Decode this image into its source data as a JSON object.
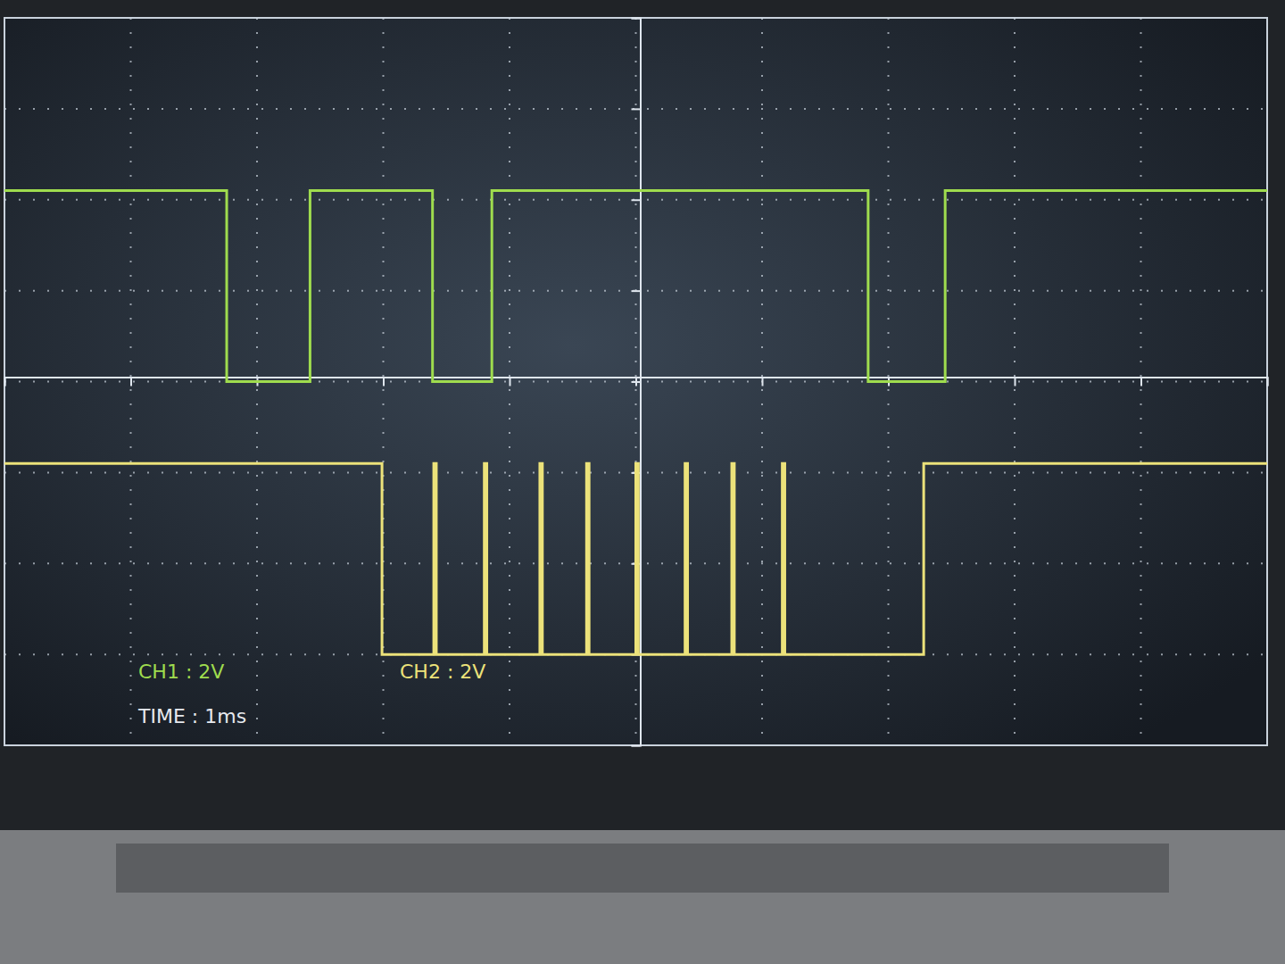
{
  "chart_data": {
    "type": "line",
    "x": [
      0,
      1.76,
      2.42,
      2.99,
      3.39,
      3.4,
      3.42,
      3.8,
      3.82,
      3.86,
      4.24,
      4.26,
      4.61,
      4.63,
      5.0,
      5.02,
      5.39,
      5.41,
      5.76,
      5.78,
      6.16,
      6.18,
      6.84,
      7.28,
      7.45,
      10
    ],
    "series": [
      {
        "name": "CH1 : 2V",
        "color": "#9fdc4e",
        "line_style": "step",
        "values": [
          2.1,
          0,
          2.1,
          2.1,
          0,
          0,
          0,
          0,
          0,
          2.1,
          2.1,
          2.1,
          2.1,
          2.1,
          2.1,
          2.1,
          2.1,
          2.1,
          2.1,
          2.1,
          2.1,
          2.1,
          0,
          0,
          2.1,
          2.1
        ]
      },
      {
        "name": "CH2 : 2V",
        "color": "#ece27a",
        "line_style": "step",
        "values": [
          -0.9,
          -0.9,
          -0.9,
          -3,
          -3,
          -0.9,
          -3,
          -0.9,
          -3,
          -3,
          -0.9,
          -3,
          -0.9,
          -3,
          -0.9,
          -3,
          -0.9,
          -3,
          -0.9,
          -3,
          -0.9,
          -3,
          -3,
          -0.9,
          -0.9,
          -0.9
        ]
      }
    ],
    "annotations": [
      "TIME : 1ms"
    ],
    "xlim": [
      0,
      10
    ],
    "xticks": [
      0,
      1,
      2,
      3,
      4,
      5,
      6,
      7,
      8,
      9,
      10
    ],
    "ylim": [
      -4,
      4
    ],
    "yticks": [
      -4,
      -3,
      -2,
      -1,
      0,
      1,
      2,
      3,
      4
    ],
    "grid": true,
    "tick_labels": false
  }
}
